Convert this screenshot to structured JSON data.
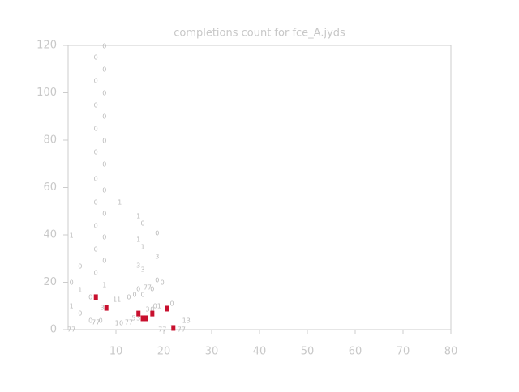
{
  "chart_data": {
    "type": "scatter",
    "title": "completions count for fce_A.jyds",
    "xlim": [
      0,
      80
    ],
    "xticks": [
      10,
      20,
      30,
      40,
      50,
      60,
      70,
      80
    ],
    "ylim": [
      0,
      120
    ],
    "yticks": [
      0,
      20,
      40,
      60,
      80,
      100,
      120
    ],
    "axis_color": "#cccccc",
    "series": [
      {
        "color": "#bbbbbb",
        "x": [
          0.7,
          0.7,
          0.7,
          0.7,
          2.5,
          2.5,
          2.5,
          4.7,
          5.8,
          6.8,
          4.7,
          5.8,
          5.8,
          5.8,
          5.8,
          5.8,
          5.8,
          5.8,
          5.8,
          5.8,
          5.8,
          7.6,
          7.6,
          7.6,
          7.6,
          7.6,
          7.6,
          7.6,
          7.6,
          7.6,
          7.6,
          7.6,
          7.6,
          10.2,
          10.2,
          11.1,
          10.8,
          12.7,
          12.7,
          13.9,
          14.7,
          14.7,
          14.7,
          14.7,
          15.6,
          15.6,
          15.6,
          15.6,
          16.6,
          17.6,
          13.7,
          14.7,
          15.6,
          16.6,
          17.6,
          18.6,
          18.6,
          18.6,
          19.7,
          18.6,
          19.7,
          21.7,
          21.7,
          23.7,
          24.7
        ],
        "values": [
          0,
          9.9,
          19.8,
          39.7,
          6.8,
          16.8,
          26.7,
          3.8,
          3.1,
          3.8,
          13.7,
          23.9,
          33.8,
          43.8,
          53.7,
          63.6,
          74.9,
          84.8,
          94.7,
          105,
          114.9,
          119.7,
          109.7,
          99.8,
          89.9,
          79.7,
          69.7,
          58.8,
          48.9,
          39,
          29.1,
          18.8,
          9.2,
          12.6,
          2.7,
          2.7,
          53.7,
          3.1,
          13.7,
          14.7,
          17.1,
          47.9,
          37.9,
          27,
          44.8,
          34.9,
          25.3,
          14.7,
          17.8,
          17.1,
          4.8,
          4.8,
          4.8,
          8.5,
          8.5,
          40.7,
          30.8,
          20.9,
          19.8,
          9.9,
          0,
          10.9,
          0.7,
          0,
          3.8
        ],
        "labels": [
          "77",
          "1",
          "0",
          "1",
          "0",
          "1",
          "0",
          "0",
          "77",
          "0",
          "0",
          "0",
          "0",
          "0",
          "0",
          "0",
          "0",
          "0",
          "0",
          "0",
          "0",
          "0",
          "0",
          "0",
          "0",
          "0",
          "0",
          "0",
          "0",
          "0",
          "0",
          "1",
          "32",
          "11",
          "1",
          "0",
          "1",
          "77",
          "0",
          "0",
          "0",
          "1",
          "1",
          "3",
          "0",
          "1",
          "3",
          "0",
          "77",
          "0",
          "5",
          "3",
          "5",
          "3",
          "0",
          "0",
          "3",
          "0",
          "0",
          "01",
          "77",
          "0",
          "3",
          "77",
          "13"
        ]
      },
      {
        "color": "#c8102e",
        "x": [
          5.8,
          8.0,
          14.7,
          15.6,
          16.3,
          17.6,
          20.7,
          22.0
        ],
        "values": [
          13.7,
          9.2,
          6.8,
          4.8,
          4.8,
          6.8,
          8.9,
          0.7
        ]
      }
    ]
  }
}
